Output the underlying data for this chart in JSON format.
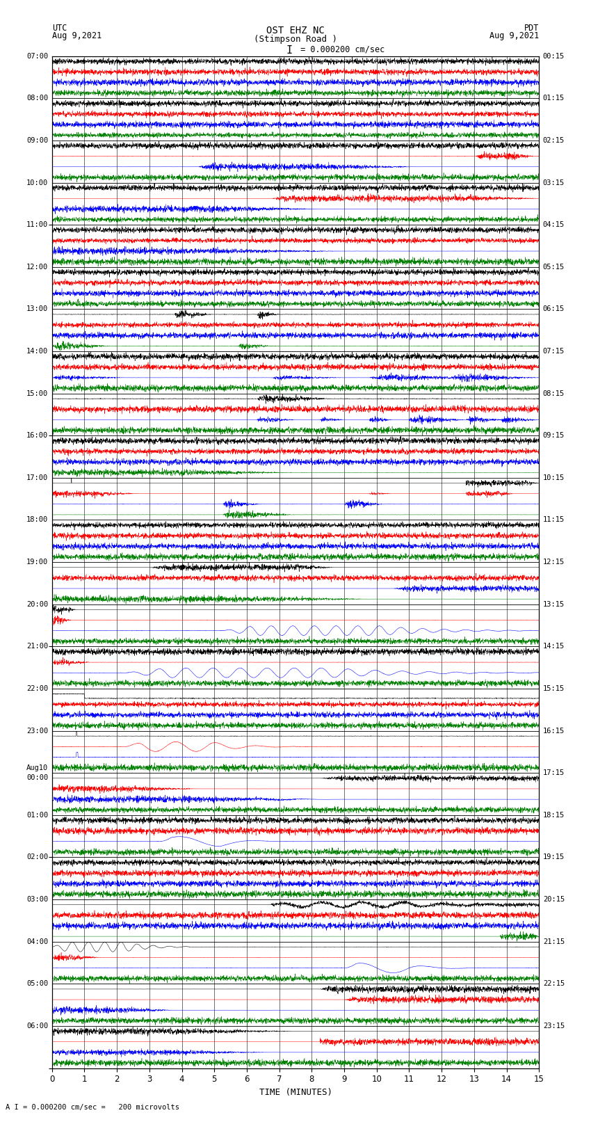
{
  "title_line1": "OST EHZ NC",
  "title_line2": "(Stimpson Road )",
  "scale_label": "I = 0.000200 cm/sec",
  "left_header_line1": "UTC",
  "left_header_line2": "Aug 9,2021",
  "right_header_line1": "PDT",
  "right_header_line2": "Aug 9,2021",
  "bottom_note": "A I = 0.000200 cm/sec =   200 microvolts",
  "xlabel": "TIME (MINUTES)",
  "left_times": [
    "07:00",
    "08:00",
    "09:00",
    "10:00",
    "11:00",
    "12:00",
    "13:00",
    "14:00",
    "15:00",
    "16:00",
    "17:00",
    "18:00",
    "19:00",
    "20:00",
    "21:00",
    "22:00",
    "23:00",
    "00:00",
    "01:00",
    "02:00",
    "03:00",
    "04:00",
    "05:00",
    "06:00"
  ],
  "aug10_row": 17,
  "right_times": [
    "00:15",
    "01:15",
    "02:15",
    "03:15",
    "04:15",
    "05:15",
    "06:15",
    "07:15",
    "08:15",
    "09:15",
    "10:15",
    "11:15",
    "12:15",
    "13:15",
    "14:15",
    "15:15",
    "16:15",
    "17:15",
    "18:15",
    "19:15",
    "20:15",
    "21:15",
    "22:15",
    "23:15"
  ],
  "num_rows": 24,
  "traces_per_row": 4,
  "colors": [
    "black",
    "red",
    "blue",
    "green"
  ],
  "xlim": [
    0,
    15
  ],
  "bg_color": "white",
  "fig_width": 8.5,
  "fig_height": 16.13,
  "grid_color": "#888888",
  "line_color": "black"
}
